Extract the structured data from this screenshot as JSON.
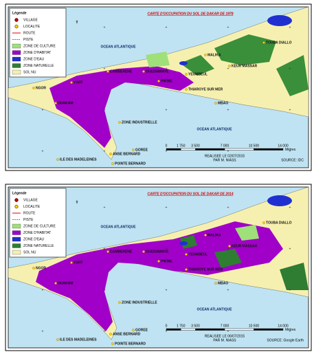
{
  "maps": [
    {
      "title": "CARTE D'OCCUPATION DU SOL DE DAKAR DE 1978",
      "legend": {
        "title": "Légende",
        "items": [
          "VILLAGE",
          "LOCALITE",
          "ROUTE",
          "PISTE",
          "ZONE DE CULTURE",
          "ZONE D'HABITAT",
          "ZONE D'EAU",
          "ZONE NATURELLE",
          "SOL NU"
        ]
      },
      "places": [
        "OCEAN ATLANTIQUE",
        "OCEAN ATLANTIQUE",
        "MALIKA",
        "TOUBA DIALLO",
        "KEUR MASSAR",
        "YEUMBEUL",
        "GUEDIAWAYE",
        "PIKINE",
        "CAMBERENE",
        "YOFF",
        "NGOR",
        "OUAKAM",
        "THIAROYE SUR MER",
        "MBAO",
        "ZONE INDUSTRIELLE",
        "GOREE",
        "ANSE BERNARD",
        "POINTE BERNARD",
        "ILE DES MADELEINES"
      ],
      "scale": {
        "ticks": [
          "0",
          "1 750",
          "3 500",
          "7 000",
          "10 500",
          "14 000"
        ],
        "unit": "Mètres"
      },
      "credits": [
        "REALISEE LE 02/07/2015",
        "PAR M. NIASS"
      ],
      "source": "SOURCE: IDC"
    },
    {
      "title": "CARTE D'OCCUPATION DU SOL DE DAKAR DE 2014",
      "legend": {
        "title": "Légende",
        "items": [
          "VILLAGE",
          "LOCALITE",
          "ROUTE",
          "PISTE",
          "ZONE DE CULTURE",
          "ZONE D'HABITAT",
          "ZONE D'EAU",
          "ZONE NATURELLE",
          "SOL NU"
        ]
      },
      "places": [
        "OCEAN ATLANTIQUE",
        "OCEAN ATLANTIQUE",
        "MALIKA",
        "TOUBA DIALLO",
        "KEUR MASSAR",
        "YEUMBEUL",
        "GUEDIAWAYE",
        "PIKINE",
        "CAMBERENE",
        "YOFF",
        "NGOR",
        "OUAKAM",
        "THIAROYE SUR MER",
        "MBAO",
        "ZONE INDUSTRIELLE",
        "GOREE",
        "ANSE BERNARD",
        "POINTE BERNARD",
        "ILE DES MADELEINES"
      ],
      "scale": {
        "ticks": [
          "0",
          "1 750",
          "3 500",
          "7 000",
          "10 500",
          "14 000"
        ],
        "unit": "Mètres"
      },
      "credits": [
        "REALISEE LE 06/07/2015",
        "PAR M. NIASS"
      ],
      "source": "SOURCE: Google Earth"
    }
  ]
}
